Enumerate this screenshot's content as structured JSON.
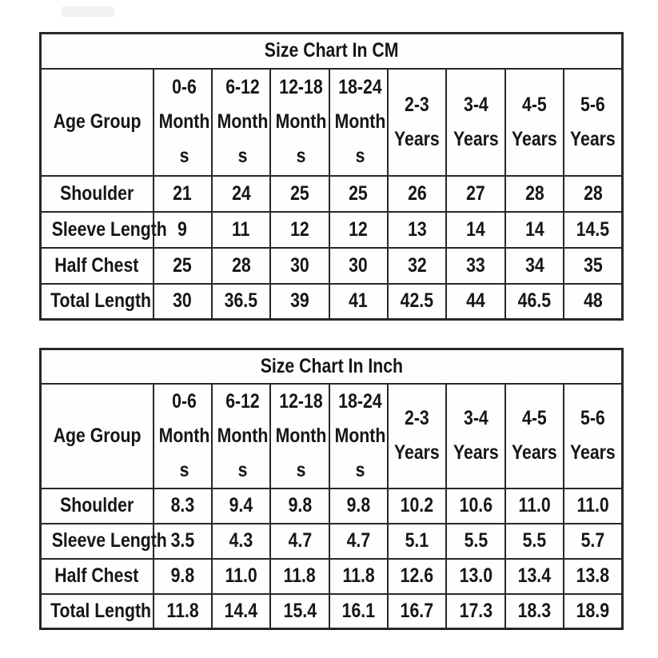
{
  "page": {
    "background_color": "#ffffff",
    "border_color": "#282828",
    "text_color": "#161616"
  },
  "chart_data": [
    {
      "type": "table",
      "title": "Size Chart In CM",
      "corner_header": "Age Group",
      "columns": [
        {
          "label": "Age Group",
          "lines": [
            "Age Group"
          ]
        },
        {
          "label": "0-6 Months",
          "lines": [
            "0-6",
            "Month",
            "s"
          ]
        },
        {
          "label": "6-12 Months",
          "lines": [
            "6-12",
            "Month",
            "s"
          ]
        },
        {
          "label": "12-18 Months",
          "lines": [
            "12-18",
            "Month",
            "s"
          ]
        },
        {
          "label": "18-24 Months",
          "lines": [
            "18-24",
            "Month",
            "s"
          ]
        },
        {
          "label": "2-3 Years",
          "lines": [
            "2-3",
            "Years"
          ]
        },
        {
          "label": "3-4 Years",
          "lines": [
            "3-4",
            "Years"
          ]
        },
        {
          "label": "4-5 Years",
          "lines": [
            "4-5",
            "Years"
          ]
        },
        {
          "label": "5-6 Years",
          "lines": [
            "5-6",
            "Years"
          ]
        }
      ],
      "rows": [
        {
          "label": "Shoulder",
          "values": [
            "21",
            "24",
            "25",
            "25",
            "26",
            "27",
            "28",
            "28"
          ]
        },
        {
          "label": "Sleeve Length",
          "values": [
            "9",
            "11",
            "12",
            "12",
            "13",
            "14",
            "14",
            "14.5"
          ]
        },
        {
          "label": "Half Chest",
          "values": [
            "25",
            "28",
            "30",
            "30",
            "32",
            "33",
            "34",
            "35"
          ]
        },
        {
          "label": "Total Length",
          "values": [
            "30",
            "36.5",
            "39",
            "41",
            "42.5",
            "44",
            "46.5",
            "48"
          ]
        }
      ]
    },
    {
      "type": "table",
      "title": "Size Chart In Inch",
      "corner_header": "Age Group",
      "columns": [
        {
          "label": "Age Group",
          "lines": [
            "Age Group"
          ]
        },
        {
          "label": "0-6 Months",
          "lines": [
            "0-6",
            "Month",
            "s"
          ]
        },
        {
          "label": "6-12 Months",
          "lines": [
            "6-12",
            "Month",
            "s"
          ]
        },
        {
          "label": "12-18 Months",
          "lines": [
            "12-18",
            "Month",
            "s"
          ]
        },
        {
          "label": "18-24 Months",
          "lines": [
            "18-24",
            "Month",
            "s"
          ]
        },
        {
          "label": "2-3 Years",
          "lines": [
            "2-3",
            "Years"
          ]
        },
        {
          "label": "3-4 Years",
          "lines": [
            "3-4",
            "Years"
          ]
        },
        {
          "label": "4-5 Years",
          "lines": [
            "4-5",
            "Years"
          ]
        },
        {
          "label": "5-6 Years",
          "lines": [
            "5-6",
            "Years"
          ]
        }
      ],
      "rows": [
        {
          "label": "Shoulder",
          "values": [
            "8.3",
            "9.4",
            "9.8",
            "9.8",
            "10.2",
            "10.6",
            "11.0",
            "11.0"
          ]
        },
        {
          "label": "Sleeve Length",
          "values": [
            "3.5",
            "4.3",
            "4.7",
            "4.7",
            "5.1",
            "5.5",
            "5.5",
            "5.7"
          ]
        },
        {
          "label": "Half Chest",
          "values": [
            "9.8",
            "11.0",
            "11.8",
            "11.8",
            "12.6",
            "13.0",
            "13.4",
            "13.8"
          ]
        },
        {
          "label": "Total Length",
          "values": [
            "11.8",
            "14.4",
            "15.4",
            "16.1",
            "16.7",
            "17.3",
            "18.3",
            "18.9"
          ]
        }
      ]
    }
  ]
}
